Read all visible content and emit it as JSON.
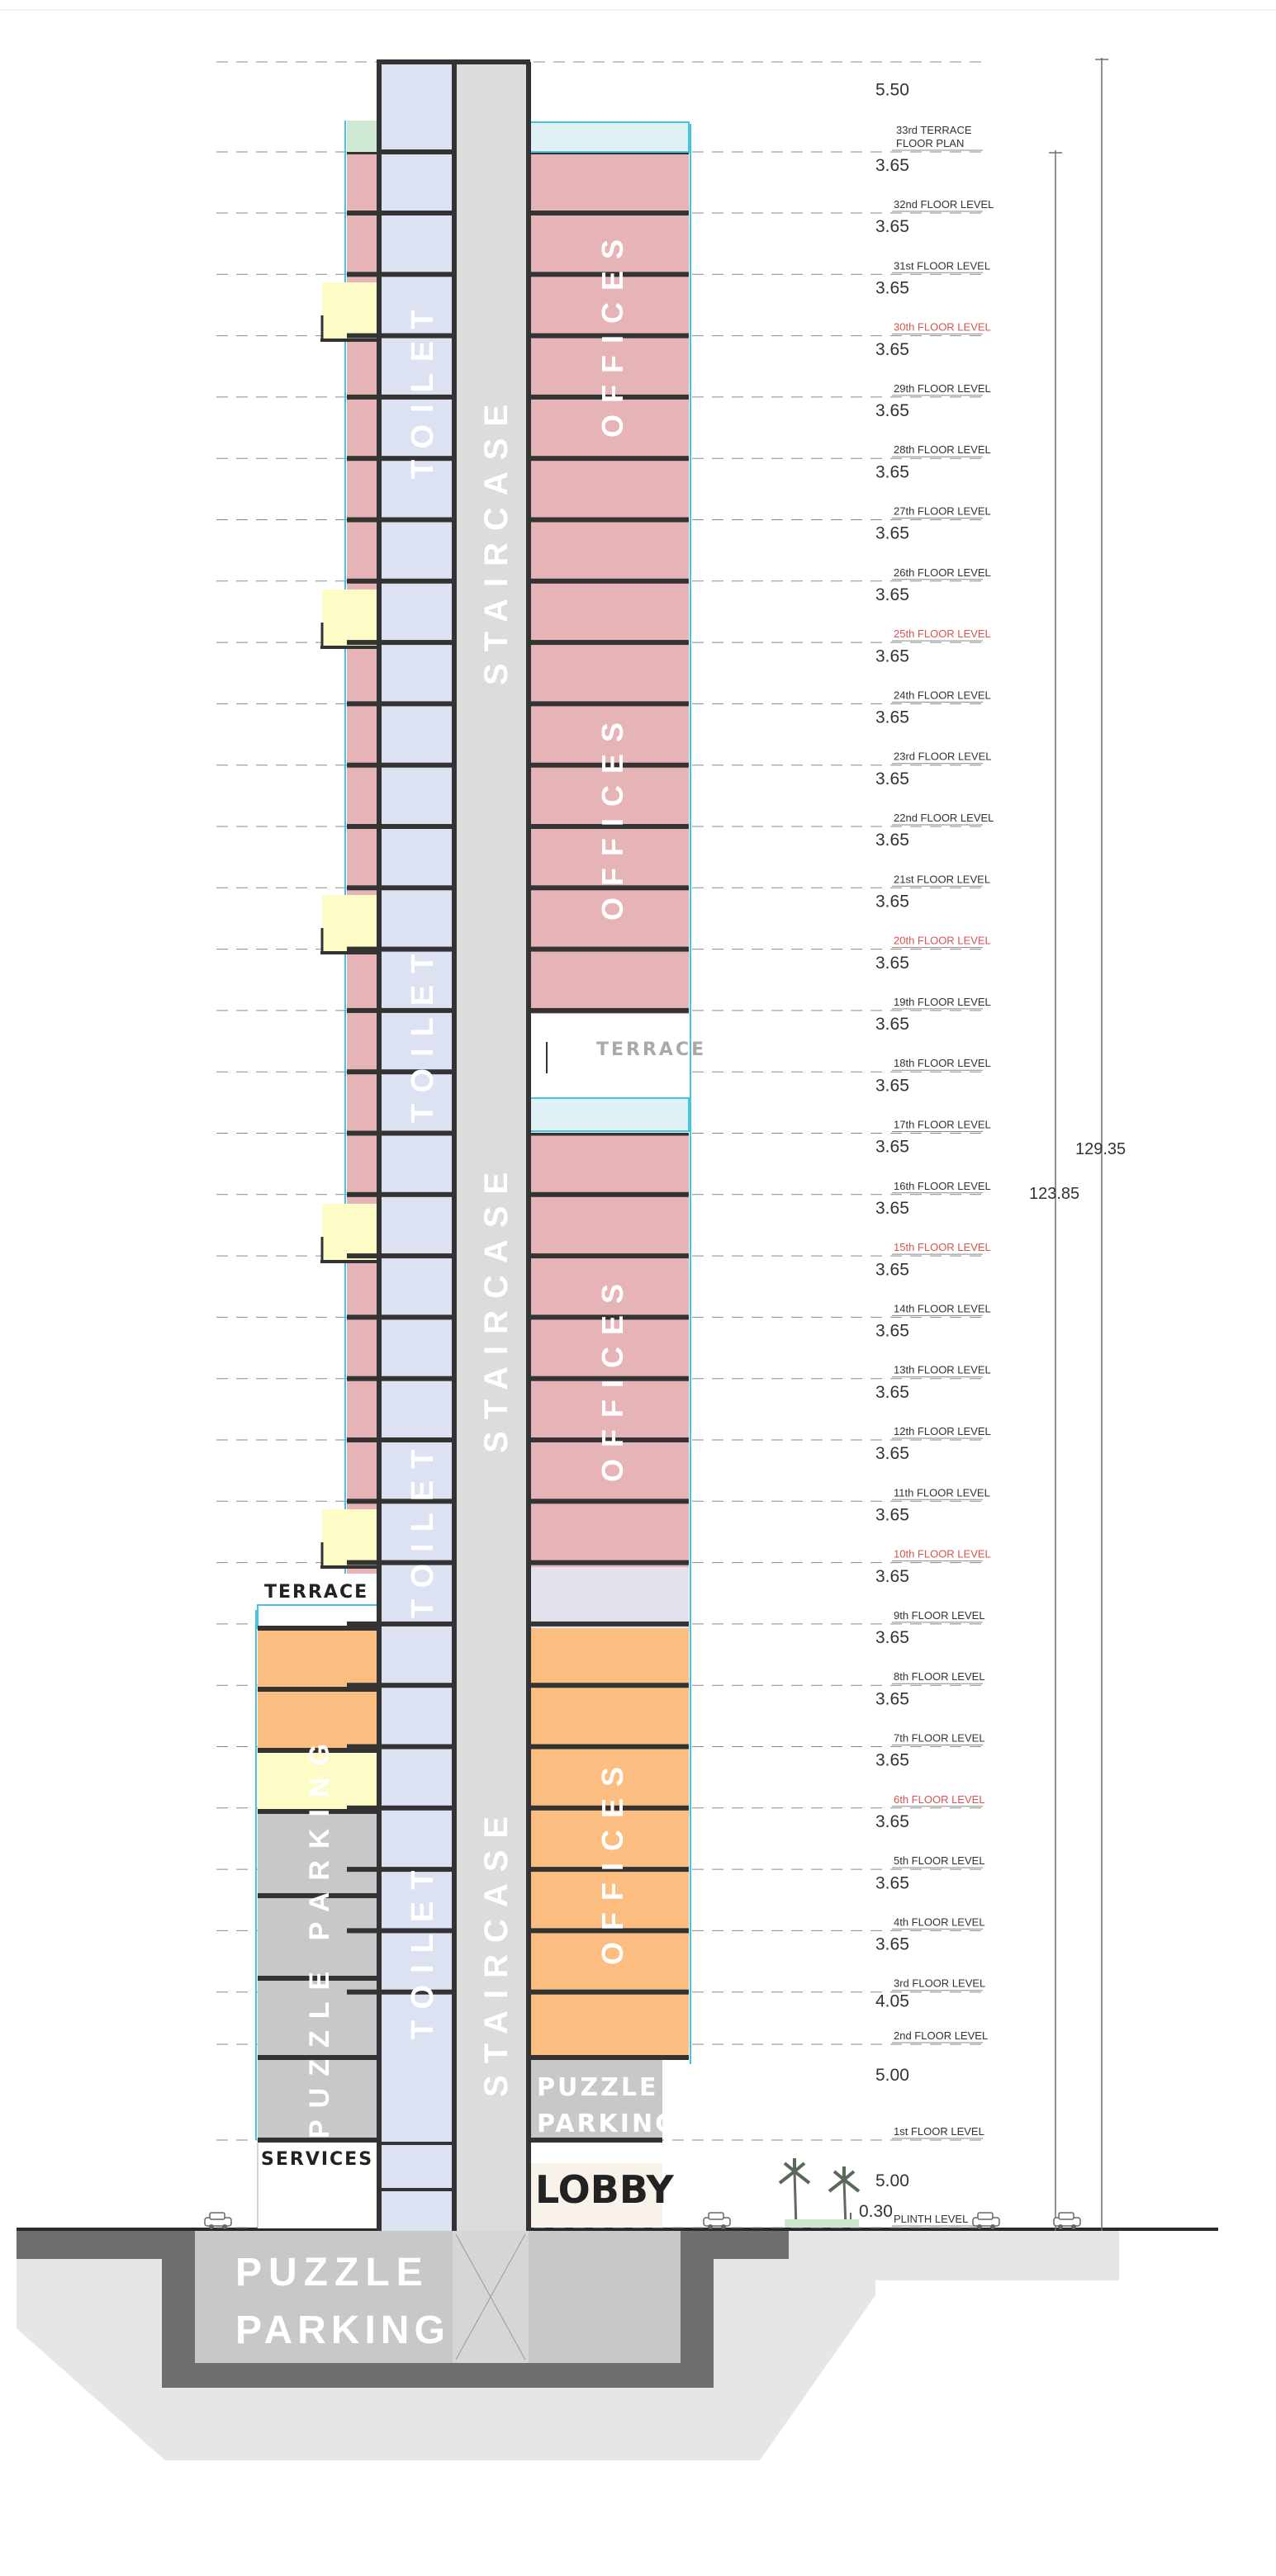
{
  "diagram": {
    "colors": {
      "office_pink": "#e6b4b6",
      "office_orange": "#fbbd80",
      "service_blue": "#dde2f3",
      "stair_grey": "#dcdcdc",
      "parking_grey": "#c6c8c9",
      "yellow_box": "#fefcc6",
      "lavender": "#e4e1ec",
      "lobby_cream": "#f9f2ea",
      "red_level": "#d9534f",
      "ground_dark": "#6e6e6e",
      "basement_light": "#e6e6e6"
    },
    "labels": {
      "staircase": "STAIRCASE",
      "toilet": "TOILET",
      "offices": "OFFICES",
      "terrace": "TERRACE",
      "puzzle_parking_rotated": "PUZZLE PARKING",
      "puzzle": "PUZZLE",
      "parking": "PARKING",
      "services": "SERVICES",
      "lobby": "LOBBY"
    },
    "dimensions": {
      "total_height": "129.35",
      "to_terrace": "123.85",
      "plinth": "0.30"
    },
    "levels": [
      {
        "h": "5.50",
        "label": "33rd TERRACE\nFLOOR PLAN",
        "red": false
      },
      {
        "h": "3.65",
        "label": "32nd FLOOR LEVEL",
        "red": false
      },
      {
        "h": "3.65",
        "label": "31st FLOOR LEVEL",
        "red": false
      },
      {
        "h": "3.65",
        "label": "30th FLOOR LEVEL",
        "red": true
      },
      {
        "h": "3.65",
        "label": "29th FLOOR LEVEL",
        "red": false
      },
      {
        "h": "3.65",
        "label": "28th FLOOR LEVEL",
        "red": false
      },
      {
        "h": "3.65",
        "label": "27th FLOOR LEVEL",
        "red": false
      },
      {
        "h": "3.65",
        "label": "26th FLOOR LEVEL",
        "red": false
      },
      {
        "h": "3.65",
        "label": "25th FLOOR LEVEL",
        "red": true
      },
      {
        "h": "3.65",
        "label": "24th FLOOR LEVEL",
        "red": false
      },
      {
        "h": "3.65",
        "label": "23rd FLOOR LEVEL",
        "red": false
      },
      {
        "h": "3.65",
        "label": "22nd FLOOR LEVEL",
        "red": false
      },
      {
        "h": "3.65",
        "label": "21st FLOOR LEVEL",
        "red": false
      },
      {
        "h": "3.65",
        "label": "20th FLOOR LEVEL",
        "red": true
      },
      {
        "h": "3.65",
        "label": "19th FLOOR LEVEL",
        "red": false
      },
      {
        "h": "3.65",
        "label": "18th FLOOR LEVEL",
        "red": false
      },
      {
        "h": "3.65",
        "label": "17th FLOOR LEVEL",
        "red": false
      },
      {
        "h": "3.65",
        "label": "16th FLOOR LEVEL",
        "red": false
      },
      {
        "h": "3.65",
        "label": "15th FLOOR LEVEL",
        "red": true
      },
      {
        "h": "3.65",
        "label": "14th FLOOR LEVEL",
        "red": false
      },
      {
        "h": "3.65",
        "label": "13th FLOOR LEVEL",
        "red": false
      },
      {
        "h": "3.65",
        "label": "12th FLOOR LEVEL",
        "red": false
      },
      {
        "h": "3.65",
        "label": "11th FLOOR LEVEL",
        "red": false
      },
      {
        "h": "3.65",
        "label": "10th FLOOR LEVEL",
        "red": true
      },
      {
        "h": "3.65",
        "label": "9th FLOOR LEVEL",
        "red": false
      },
      {
        "h": "3.65",
        "label": "8th FLOOR LEVEL",
        "red": false
      },
      {
        "h": "3.65",
        "label": "7th FLOOR LEVEL",
        "red": false
      },
      {
        "h": "3.65",
        "label": "6th FLOOR LEVEL",
        "red": true
      },
      {
        "h": "3.65",
        "label": "5th FLOOR LEVEL",
        "red": false
      },
      {
        "h": "3.65",
        "label": "4th FLOOR LEVEL",
        "red": false
      },
      {
        "h": "3.65",
        "label": "3rd FLOOR LEVEL",
        "red": false
      },
      {
        "h": "4.05",
        "label": "2nd FLOOR LEVEL",
        "red": false
      },
      {
        "h": "5.00",
        "label": "1st FLOOR LEVEL",
        "red": false
      },
      {
        "h": "5.00",
        "label": "PLINTH LEVEL",
        "red": false
      }
    ]
  }
}
